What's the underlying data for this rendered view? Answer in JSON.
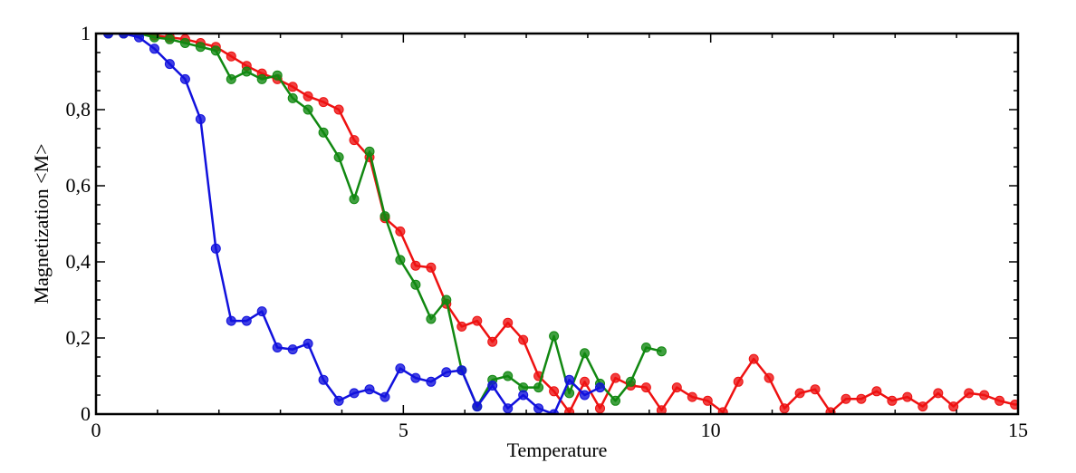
{
  "chart_data": {
    "type": "line",
    "title": "",
    "xlabel": "Temperature",
    "ylabel": "Magnetization <M>",
    "xlim": [
      0,
      15
    ],
    "ylim": [
      0,
      1
    ],
    "x_ticks": [
      0,
      5,
      10,
      15
    ],
    "x_tick_labels": [
      "0",
      "5",
      "10",
      "15"
    ],
    "y_ticks": [
      0,
      0.2,
      0.4,
      0.6,
      0.8,
      1
    ],
    "y_tick_labels": [
      "0",
      "0,2",
      "0,4",
      "0,6",
      "0,8",
      "1"
    ],
    "grid": false,
    "legend": "none",
    "series": [
      {
        "color": "#ee1111",
        "points": [
          [
            0.2,
            1.0
          ],
          [
            0.45,
            1.0
          ],
          [
            0.7,
            1.0
          ],
          [
            0.95,
            0.995
          ],
          [
            1.2,
            0.99
          ],
          [
            1.45,
            0.985
          ],
          [
            1.7,
            0.975
          ],
          [
            1.95,
            0.965
          ],
          [
            2.2,
            0.94
          ],
          [
            2.45,
            0.915
          ],
          [
            2.7,
            0.895
          ],
          [
            2.95,
            0.88
          ],
          [
            3.2,
            0.86
          ],
          [
            3.45,
            0.835
          ],
          [
            3.7,
            0.82
          ],
          [
            3.95,
            0.8
          ],
          [
            4.2,
            0.72
          ],
          [
            4.45,
            0.675
          ],
          [
            4.7,
            0.515
          ],
          [
            4.95,
            0.48
          ],
          [
            5.2,
            0.39
          ],
          [
            5.45,
            0.385
          ],
          [
            5.7,
            0.29
          ],
          [
            5.95,
            0.23
          ],
          [
            6.2,
            0.245
          ],
          [
            6.45,
            0.19
          ],
          [
            6.7,
            0.24
          ],
          [
            6.95,
            0.195
          ],
          [
            7.2,
            0.1
          ],
          [
            7.45,
            0.06
          ],
          [
            7.7,
            0.005
          ],
          [
            7.95,
            0.085
          ],
          [
            8.2,
            0.015
          ],
          [
            8.45,
            0.095
          ],
          [
            8.7,
            0.075
          ],
          [
            8.95,
            0.07
          ],
          [
            9.2,
            0.01
          ],
          [
            9.45,
            0.07
          ],
          [
            9.7,
            0.045
          ],
          [
            9.95,
            0.035
          ],
          [
            10.2,
            0.005
          ],
          [
            10.45,
            0.085
          ],
          [
            10.7,
            0.145
          ],
          [
            10.95,
            0.095
          ],
          [
            11.2,
            0.015
          ],
          [
            11.45,
            0.055
          ],
          [
            11.7,
            0.065
          ],
          [
            11.95,
            0.005
          ],
          [
            12.2,
            0.04
          ],
          [
            12.45,
            0.04
          ],
          [
            12.7,
            0.06
          ],
          [
            12.95,
            0.035
          ],
          [
            13.2,
            0.045
          ],
          [
            13.45,
            0.02
          ],
          [
            13.7,
            0.055
          ],
          [
            13.95,
            0.02
          ],
          [
            14.2,
            0.055
          ],
          [
            14.45,
            0.05
          ],
          [
            14.7,
            0.035
          ],
          [
            14.95,
            0.025
          ],
          [
            15.2,
            0.03
          ]
        ]
      },
      {
        "color": "#118811",
        "points": [
          [
            0.2,
            1.0
          ],
          [
            0.45,
            1.0
          ],
          [
            0.7,
            1.0
          ],
          [
            0.95,
            0.99
          ],
          [
            1.2,
            0.985
          ],
          [
            1.45,
            0.975
          ],
          [
            1.7,
            0.965
          ],
          [
            1.95,
            0.955
          ],
          [
            2.2,
            0.88
          ],
          [
            2.45,
            0.9
          ],
          [
            2.7,
            0.88
          ],
          [
            2.95,
            0.89
          ],
          [
            3.2,
            0.83
          ],
          [
            3.45,
            0.8
          ],
          [
            3.7,
            0.74
          ],
          [
            3.95,
            0.675
          ],
          [
            4.2,
            0.565
          ],
          [
            4.45,
            0.69
          ],
          [
            4.7,
            0.52
          ],
          [
            4.95,
            0.405
          ],
          [
            5.2,
            0.34
          ],
          [
            5.45,
            0.25
          ],
          [
            5.7,
            0.3
          ],
          [
            5.95,
            0.115
          ],
          [
            6.2,
            0.02
          ],
          [
            6.45,
            0.09
          ],
          [
            6.7,
            0.1
          ],
          [
            6.95,
            0.07
          ],
          [
            7.2,
            0.07
          ],
          [
            7.45,
            0.205
          ],
          [
            7.7,
            0.055
          ],
          [
            7.95,
            0.16
          ],
          [
            8.2,
            0.08
          ],
          [
            8.45,
            0.035
          ],
          [
            8.7,
            0.085
          ],
          [
            8.95,
            0.175
          ],
          [
            9.2,
            0.165
          ]
        ]
      },
      {
        "color": "#1111dd",
        "points": [
          [
            0.2,
            1.0
          ],
          [
            0.45,
            1.0
          ],
          [
            0.7,
            0.99
          ],
          [
            0.95,
            0.96
          ],
          [
            1.2,
            0.92
          ],
          [
            1.45,
            0.88
          ],
          [
            1.7,
            0.775
          ],
          [
            1.95,
            0.435
          ],
          [
            2.2,
            0.245
          ],
          [
            2.45,
            0.245
          ],
          [
            2.7,
            0.27
          ],
          [
            2.95,
            0.175
          ],
          [
            3.2,
            0.17
          ],
          [
            3.45,
            0.185
          ],
          [
            3.7,
            0.09
          ],
          [
            3.95,
            0.035
          ],
          [
            4.2,
            0.055
          ],
          [
            4.45,
            0.065
          ],
          [
            4.7,
            0.045
          ],
          [
            4.95,
            0.12
          ],
          [
            5.2,
            0.095
          ],
          [
            5.45,
            0.085
          ],
          [
            5.7,
            0.11
          ],
          [
            5.95,
            0.115
          ],
          [
            6.2,
            0.02
          ],
          [
            6.45,
            0.075
          ],
          [
            6.7,
            0.015
          ],
          [
            6.95,
            0.05
          ],
          [
            7.2,
            0.015
          ],
          [
            7.45,
            0.0
          ],
          [
            7.7,
            0.09
          ],
          [
            7.95,
            0.05
          ],
          [
            8.2,
            0.07
          ]
        ]
      }
    ]
  }
}
